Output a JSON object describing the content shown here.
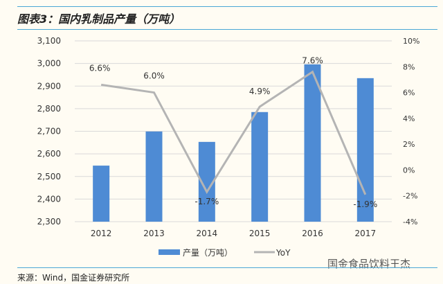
{
  "title": "图表3：国内乳制品产量（万吨）",
  "source": "来源：Wind，国金证券研究所",
  "watermark": "国金食品饮料王杰",
  "chart_data": {
    "type": "bar+line",
    "title": "图表3：国内乳制品产量（万吨）",
    "categories": [
      "2012",
      "2013",
      "2014",
      "2015",
      "2016",
      "2017"
    ],
    "series": [
      {
        "name": "产量（万吨）",
        "type": "bar",
        "axis": "left",
        "color": "#4e8bd4",
        "values": [
          2548,
          2699,
          2653,
          2785,
          2996,
          2935
        ]
      },
      {
        "name": "YoY",
        "type": "line",
        "axis": "right",
        "color": "#b4b4b4",
        "values": [
          6.6,
          6.0,
          -1.7,
          4.9,
          7.6,
          -1.9
        ],
        "labels": [
          "6.6%",
          "6.0%",
          "-1.7%",
          "4.9%",
          "7.6%",
          "-1.9%"
        ]
      }
    ],
    "left_axis": {
      "min": 2300,
      "max": 3100,
      "step": 100,
      "tick_labels": [
        "2,300",
        "2,400",
        "2,500",
        "2,600",
        "2,700",
        "2,800",
        "2,900",
        "3,000",
        "3,100"
      ]
    },
    "right_axis": {
      "min": -4,
      "max": 10,
      "step": 2,
      "tick_labels": [
        "-4%",
        "-2%",
        "0%",
        "2%",
        "4%",
        "6%",
        "8%",
        "10%"
      ]
    },
    "grid": true,
    "legend_position": "bottom"
  }
}
